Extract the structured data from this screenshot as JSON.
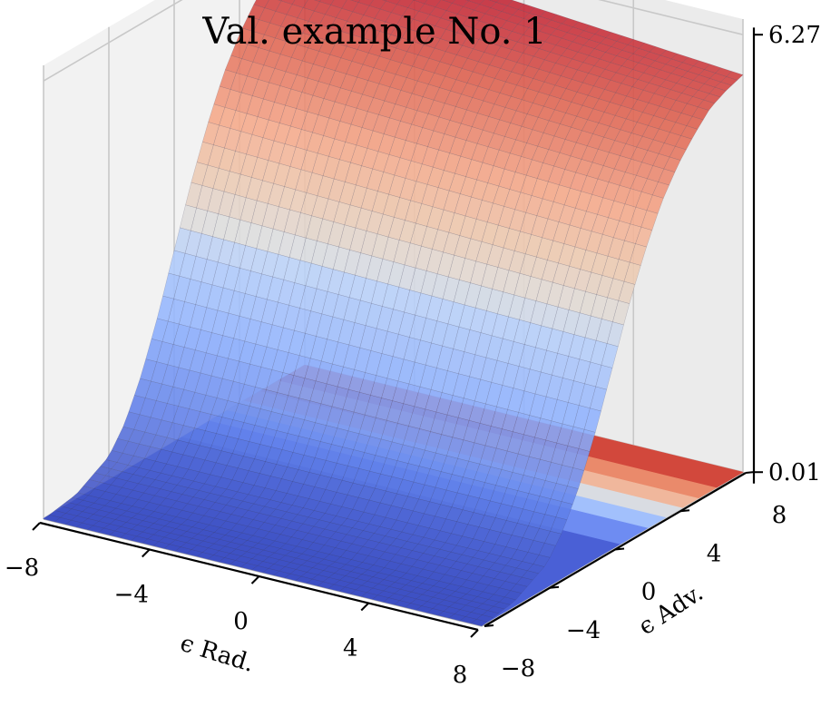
{
  "chart_data": {
    "type": "surface3d",
    "title": "Val. example No. 1",
    "xlabel": "ϵ Rad.",
    "ylabel": "ϵ Adv.",
    "zlabel": "",
    "xlim": [
      -8,
      8
    ],
    "ylim": [
      -8,
      8
    ],
    "xticks": [
      "−8",
      "−4",
      "0",
      "4",
      "8"
    ],
    "yticks": [
      "−8",
      "−4",
      "0",
      "4",
      "8"
    ],
    "zticks": [
      "0.010",
      "6.276"
    ],
    "zlim": [
      0.01,
      6.276
    ],
    "colormap": "coolwarm",
    "grid": true,
    "surfaces": [
      {
        "name": "",
        "description": "surface rising sigmoidally with ϵ Adv.",
        "y": [
          -8,
          -6,
          -4,
          -3,
          -2,
          -1,
          0,
          1,
          2,
          3,
          4,
          5,
          6,
          7,
          8
        ],
        "z_at_x_min": [
          0.0,
          0.08,
          0.35,
          0.7,
          1.25,
          1.95,
          2.75,
          3.55,
          4.25,
          4.85,
          5.3,
          5.65,
          5.9,
          6.1,
          6.2
        ],
        "z_at_x_max": [
          0.0,
          0.08,
          0.35,
          0.7,
          1.2,
          1.85,
          2.6,
          3.35,
          4.0,
          4.55,
          4.95,
          5.25,
          5.5,
          5.62,
          5.7
        ]
      },
      {
        "name": "",
        "description": "flat contour-colored plane at the floor",
        "z": 0.01
      }
    ],
    "colors": {
      "low": "#3b4cc0",
      "mid": "#dddddd",
      "high": "#b40426"
    }
  }
}
